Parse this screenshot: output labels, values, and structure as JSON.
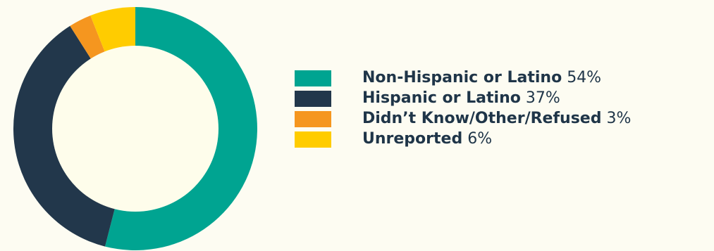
{
  "chart_data": {
    "type": "pie",
    "variant": "donut",
    "categories": [
      "Non-Hispanic or Latino",
      "Hispanic or Latino",
      "Didn’t Know/Other/Refused",
      "Unreported"
    ],
    "values": [
      54,
      37,
      3,
      6
    ],
    "value_labels": [
      "54%",
      "37%",
      "3%",
      "6%"
    ],
    "colors": [
      "#00a491",
      "#22374b",
      "#f5961f",
      "#ffcc00"
    ],
    "legend_placement": "right",
    "start_angle": "top",
    "direction": "clockwise"
  },
  "colors": {
    "background": "#fdfcf2",
    "donut_hole": "#fefdeb",
    "text": "#1f3548"
  }
}
